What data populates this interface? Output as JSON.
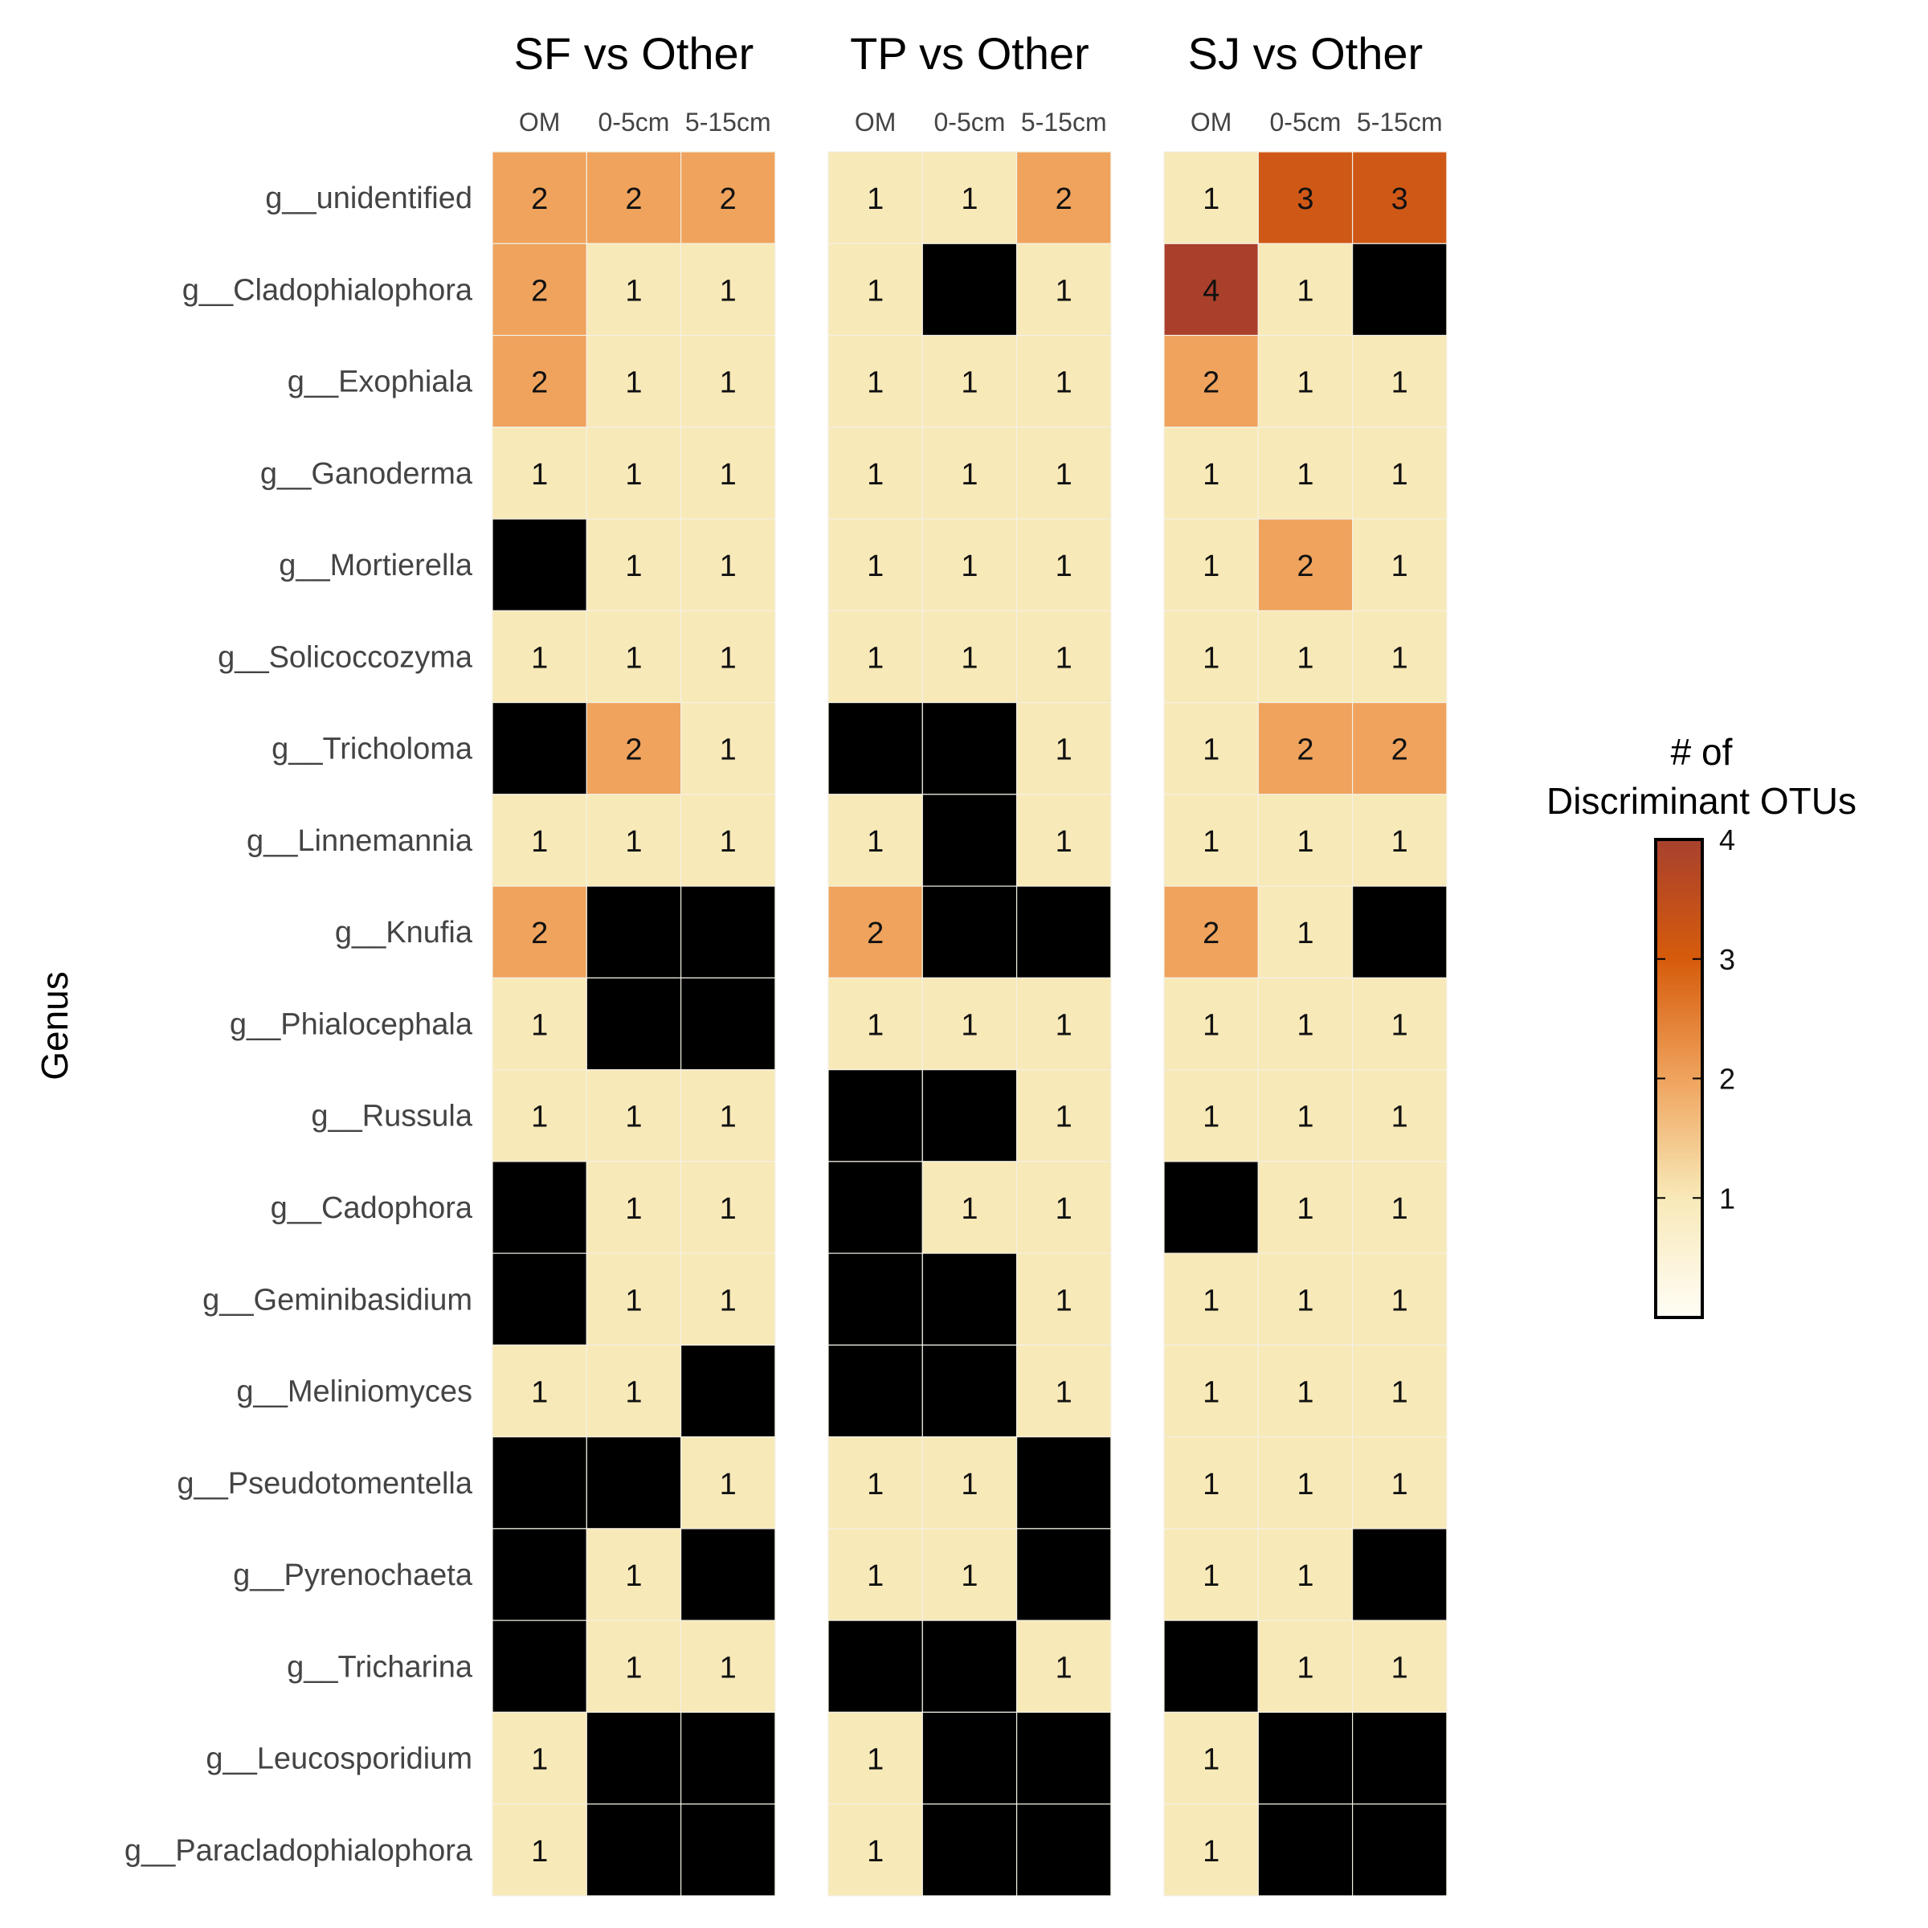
{
  "chart_data": {
    "type": "heatmap",
    "ylabel": "Genus",
    "columns": [
      "OM",
      "0-5cm",
      "5-15cm"
    ],
    "rows": [
      "g__unidentified",
      "g__Cladophialophora",
      "g__Exophiala",
      "g__Ganoderma",
      "g__Mortierella",
      "g__Solicoccozyma",
      "g__Tricholoma",
      "g__Linnemannia",
      "g__Knufia",
      "g__Phialocephala",
      "g__Russula",
      "g__Cadophora",
      "g__Geminibasidium",
      "g__Meliniomyces",
      "g__Pseudotomentella",
      "g__Pyrenochaeta",
      "g__Tricharina",
      "g__Leucosporidium",
      "g__Paracladophialophora"
    ],
    "panels": [
      {
        "title": "SF vs Other",
        "values": [
          [
            2,
            2,
            2
          ],
          [
            2,
            1,
            1
          ],
          [
            2,
            1,
            1
          ],
          [
            1,
            1,
            1
          ],
          [
            null,
            1,
            1
          ],
          [
            1,
            1,
            1
          ],
          [
            null,
            2,
            1
          ],
          [
            1,
            1,
            1
          ],
          [
            2,
            null,
            null
          ],
          [
            1,
            null,
            null
          ],
          [
            1,
            1,
            1
          ],
          [
            null,
            1,
            1
          ],
          [
            null,
            1,
            1
          ],
          [
            1,
            1,
            null
          ],
          [
            null,
            null,
            1
          ],
          [
            null,
            1,
            null
          ],
          [
            null,
            1,
            1
          ],
          [
            1,
            null,
            null
          ],
          [
            1,
            null,
            null
          ]
        ]
      },
      {
        "title": "TP vs Other",
        "values": [
          [
            1,
            1,
            2
          ],
          [
            1,
            null,
            1
          ],
          [
            1,
            1,
            1
          ],
          [
            1,
            1,
            1
          ],
          [
            1,
            1,
            1
          ],
          [
            1,
            1,
            1
          ],
          [
            null,
            null,
            1
          ],
          [
            1,
            null,
            1
          ],
          [
            2,
            null,
            null
          ],
          [
            1,
            1,
            1
          ],
          [
            null,
            null,
            1
          ],
          [
            null,
            1,
            1
          ],
          [
            null,
            null,
            1
          ],
          [
            null,
            null,
            1
          ],
          [
            1,
            1,
            null
          ],
          [
            1,
            1,
            null
          ],
          [
            null,
            null,
            1
          ],
          [
            1,
            null,
            null
          ],
          [
            1,
            null,
            null
          ]
        ]
      },
      {
        "title": "SJ vs Other",
        "values": [
          [
            1,
            3,
            3
          ],
          [
            4,
            1,
            null
          ],
          [
            2,
            1,
            1
          ],
          [
            1,
            1,
            1
          ],
          [
            1,
            2,
            1
          ],
          [
            1,
            1,
            1
          ],
          [
            1,
            2,
            2
          ],
          [
            1,
            1,
            1
          ],
          [
            2,
            1,
            null
          ],
          [
            1,
            1,
            1
          ],
          [
            1,
            1,
            1
          ],
          [
            null,
            1,
            1
          ],
          [
            1,
            1,
            1
          ],
          [
            1,
            1,
            1
          ],
          [
            1,
            1,
            1
          ],
          [
            1,
            1,
            null
          ],
          [
            null,
            1,
            1
          ],
          [
            1,
            null,
            null
          ],
          [
            1,
            null,
            null
          ]
        ]
      }
    ],
    "legend": {
      "title_lines": [
        "# of",
        "Discriminant OTUs"
      ],
      "ticks": [
        1,
        2,
        3,
        4
      ],
      "range": [
        0,
        4
      ],
      "placement": "right"
    },
    "colors": {
      "1": "#f8e9b8",
      "2": "#efa35d",
      "3": "#d05816",
      "4": "#aa3f2c",
      "missing": "#000000",
      "gradient": [
        "#fffdf6",
        "#f8e9b8",
        "#efa35d",
        "#d65b0b",
        "#a8412d"
      ]
    }
  }
}
